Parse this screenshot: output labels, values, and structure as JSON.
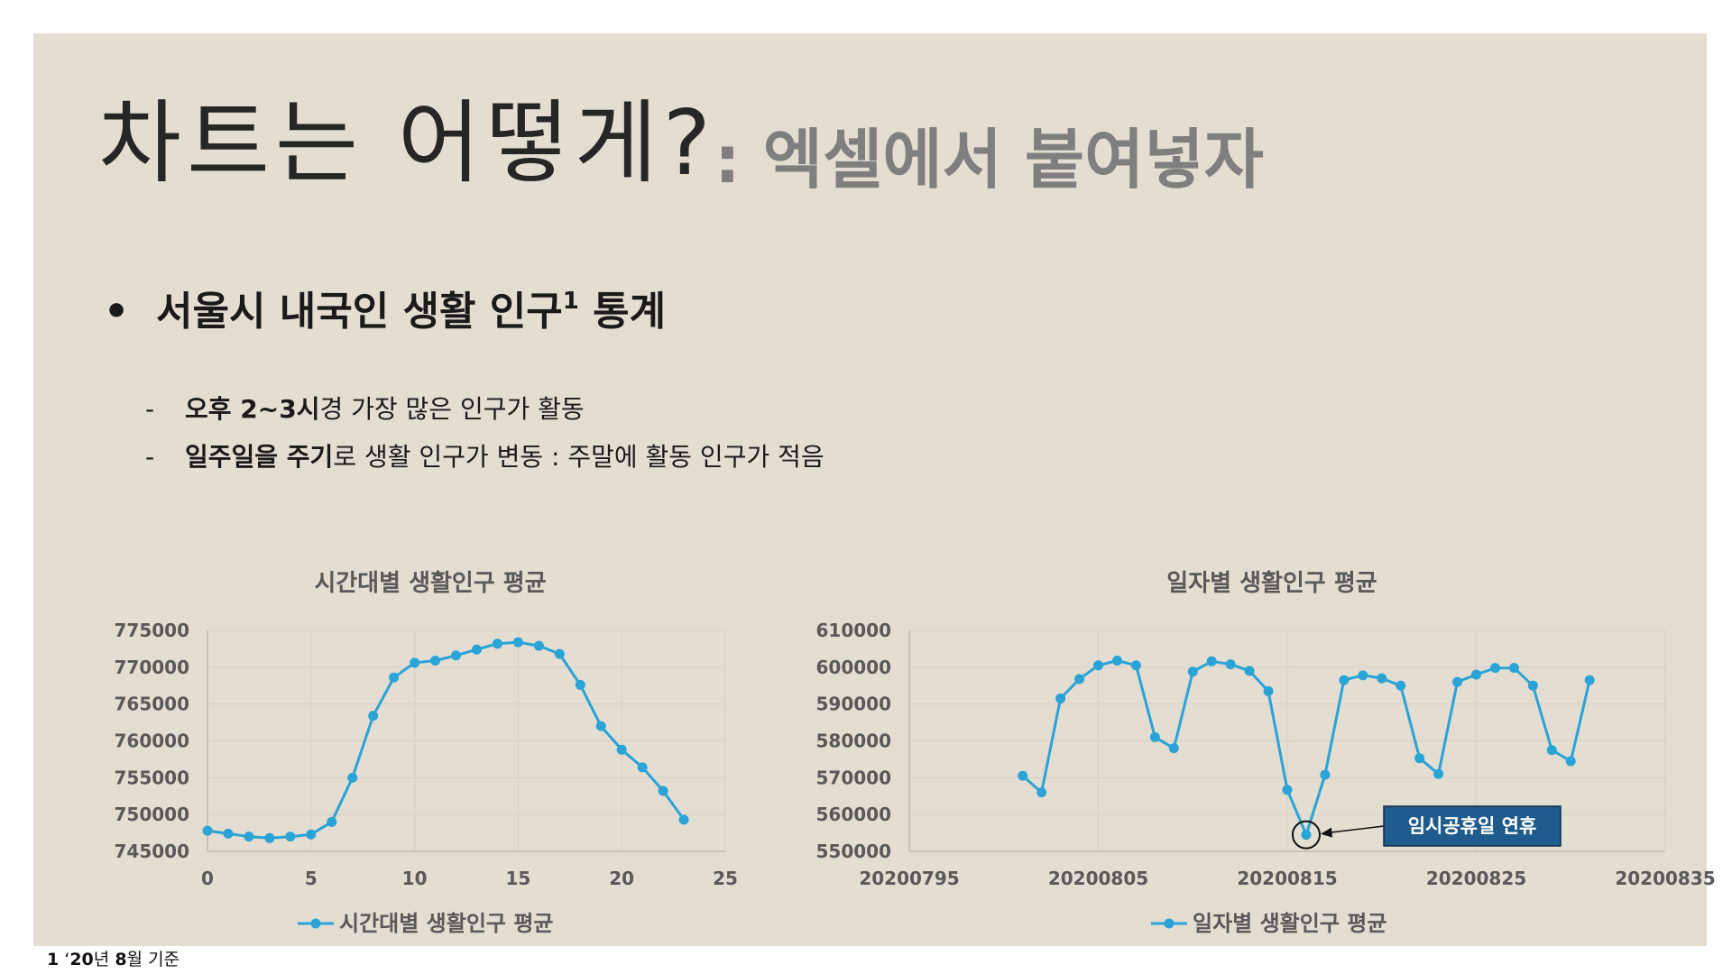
{
  "slide": {
    "title": "차트는 어떻게?",
    "subtitle": ": 엑셀에서 붙여넣자",
    "bullet": {
      "marker": "•",
      "text": "서울시 내국인 생활 인구",
      "superscript": "1",
      "text_after": " 통계"
    },
    "sub_items": [
      {
        "dash": "-",
        "bold": "오후 2~3시",
        "rest": "경 가장 많은 인구가 활동"
      },
      {
        "dash": "-",
        "bold": "일주일을 주기",
        "rest": "로 생활 인구가 변동 : 주말에 활동 인구가 적음"
      }
    ],
    "footnote": {
      "number": "1",
      "prefix": " ‘",
      "year": "20",
      "mid": "년 ",
      "month": "8",
      "suffix": "월 기준"
    }
  },
  "colors": {
    "background": "#e3ddd2",
    "series": "#2aa3d6",
    "axis_text": "#595959",
    "callout_fill": "#1f5b8c"
  },
  "chart_data": [
    {
      "type": "line",
      "title": "시간대별 생활인구 평균",
      "xlabel": "",
      "ylabel": "",
      "xlim": [
        0,
        25
      ],
      "ylim": [
        745000,
        775000
      ],
      "xticks": [
        0,
        5,
        10,
        15,
        20,
        25
      ],
      "yticks": [
        745000,
        750000,
        755000,
        760000,
        765000,
        770000,
        775000
      ],
      "grid": true,
      "legend": "bottom",
      "series": [
        {
          "name": "시간대별 생활인구 평균",
          "x": [
            0,
            1,
            2,
            3,
            4,
            5,
            6,
            7,
            8,
            9,
            10,
            11,
            12,
            13,
            14,
            15,
            16,
            17,
            18,
            19,
            20,
            21,
            22,
            23
          ],
          "y": [
            747800,
            747400,
            747000,
            746800,
            747000,
            747300,
            749000,
            755000,
            763400,
            768600,
            770600,
            770900,
            771600,
            772400,
            773200,
            773400,
            772900,
            771800,
            767600,
            762000,
            758800,
            756400,
            753200,
            749300
          ]
        }
      ]
    },
    {
      "type": "line",
      "title": "일자별 생활인구 평균",
      "xlabel": "",
      "ylabel": "",
      "xlim": [
        20200795,
        20200835
      ],
      "ylim": [
        550000,
        610000
      ],
      "xticks": [
        20200795,
        20200805,
        20200815,
        20200825,
        20200835
      ],
      "yticks": [
        550000,
        560000,
        570000,
        580000,
        590000,
        600000,
        610000
      ],
      "grid": true,
      "legend": "bottom",
      "annotation": {
        "text": "임시공휴일 연휴",
        "x": 20200816,
        "y": 554500
      },
      "series": [
        {
          "name": "일자별 생활인구 평균",
          "x": [
            20200801,
            20200802,
            20200803,
            20200804,
            20200805,
            20200806,
            20200807,
            20200808,
            20200809,
            20200810,
            20200811,
            20200812,
            20200813,
            20200814,
            20200815,
            20200816,
            20200817,
            20200818,
            20200819,
            20200820,
            20200821,
            20200822,
            20200823,
            20200824,
            20200825,
            20200826,
            20200827,
            20200828,
            20200829,
            20200830,
            20200831
          ],
          "y": [
            570500,
            566000,
            591500,
            596800,
            600500,
            601800,
            600500,
            581000,
            578000,
            598800,
            601600,
            600800,
            599000,
            593500,
            566700,
            554500,
            570800,
            596500,
            597800,
            597000,
            595000,
            575300,
            571000,
            596000,
            598000,
            599800,
            599800,
            595000,
            577500,
            574500,
            596500
          ]
        }
      ]
    }
  ]
}
